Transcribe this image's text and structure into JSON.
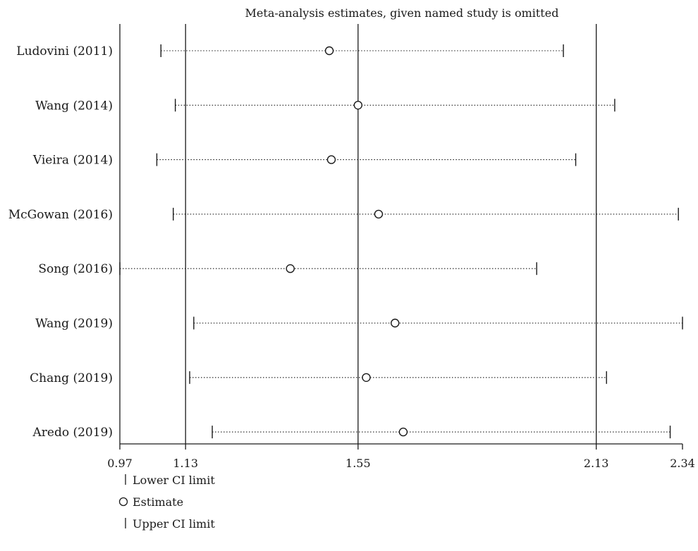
{
  "chart_data": {
    "type": "scatter",
    "title": "Meta-analysis estimates, given named study is omitted",
    "xlim": [
      0.97,
      2.34
    ],
    "x_ticks": [
      "0.97",
      "1.13",
      "1.55",
      "2.13",
      "2.34"
    ],
    "reference_lines": [
      1.13,
      1.55,
      2.13
    ],
    "studies": [
      {
        "label": "Ludovini (2011)",
        "lower": 1.07,
        "estimate": 1.48,
        "upper": 2.05
      },
      {
        "label": "Wang (2014)",
        "lower": 1.105,
        "estimate": 1.55,
        "upper": 2.175
      },
      {
        "label": "Vieira (2014)",
        "lower": 1.06,
        "estimate": 1.485,
        "upper": 2.08
      },
      {
        "label": "McGowan (2016)",
        "lower": 1.1,
        "estimate": 1.6,
        "upper": 2.33
      },
      {
        "label": "Song (2016)",
        "lower": 0.97,
        "estimate": 1.385,
        "upper": 1.985
      },
      {
        "label": "Wang (2019)",
        "lower": 1.15,
        "estimate": 1.64,
        "upper": 2.34
      },
      {
        "label": "Chang (2019)",
        "lower": 1.14,
        "estimate": 1.57,
        "upper": 2.155
      },
      {
        "label": "Aredo (2019)",
        "lower": 1.195,
        "estimate": 1.66,
        "upper": 2.31
      }
    ],
    "legend": {
      "lower": "Lower CI limit",
      "estimate": "Estimate",
      "upper": "Upper CI limit"
    },
    "grid": false
  }
}
